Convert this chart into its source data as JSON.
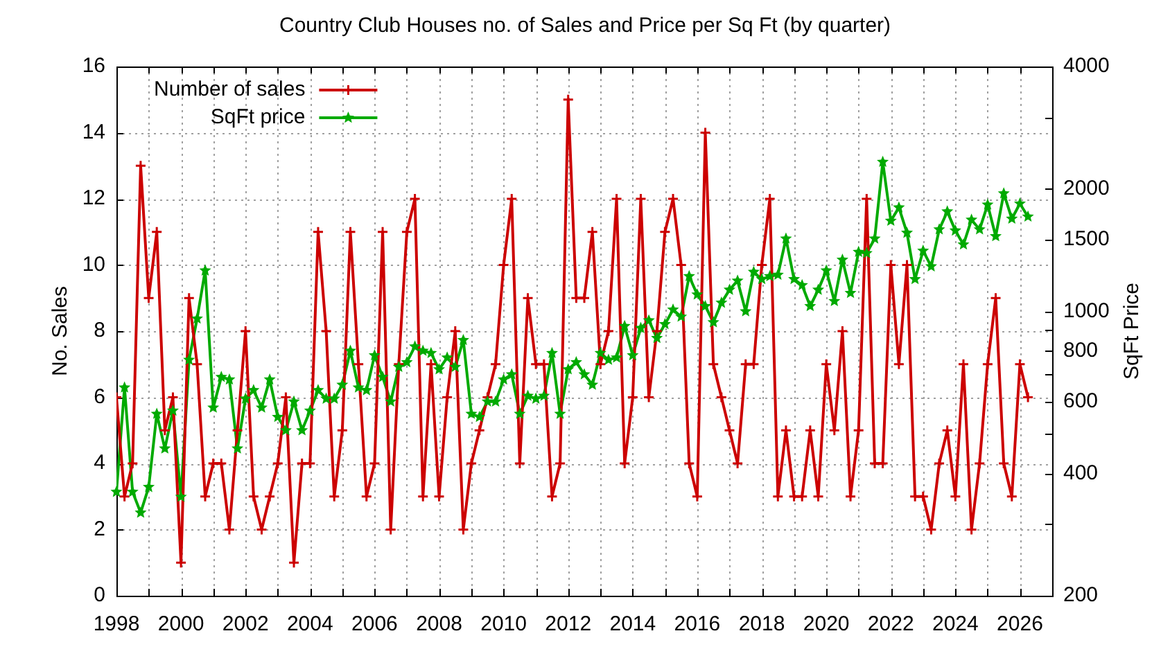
{
  "chart_data": {
    "type": "line",
    "title": "Country Club Houses no. of Sales and Price per Sq Ft (by quarter)",
    "ylabel": "No. Sales",
    "y2label": "SqFt Price",
    "x": [
      1998,
      1998.25,
      1998.5,
      1998.75,
      1999,
      1999.25,
      1999.5,
      1999.75,
      2000,
      2000.25,
      2000.5,
      2000.75,
      2001,
      2001.25,
      2001.5,
      2001.75,
      2002,
      2002.25,
      2002.5,
      2002.75,
      2003,
      2003.25,
      2003.5,
      2003.75,
      2004,
      2004.25,
      2004.5,
      2004.75,
      2005,
      2005.25,
      2005.5,
      2005.75,
      2006,
      2006.25,
      2006.5,
      2006.75,
      2007,
      2007.25,
      2007.5,
      2007.75,
      2008,
      2008.25,
      2008.5,
      2008.75,
      2009,
      2009.25,
      2009.5,
      2009.75,
      2010,
      2010.25,
      2010.5,
      2010.75,
      2011,
      2011.25,
      2011.5,
      2011.75,
      2012,
      2012.25,
      2012.5,
      2012.75,
      2013,
      2013.25,
      2013.5,
      2013.75,
      2014,
      2014.25,
      2014.5,
      2014.75,
      2015,
      2015.25,
      2015.5,
      2015.75,
      2016,
      2016.25,
      2016.5,
      2016.75,
      2017,
      2017.25,
      2017.5,
      2017.75,
      2018,
      2018.25,
      2018.5,
      2018.75,
      2019,
      2019.25,
      2019.5,
      2019.75,
      2020,
      2020.25,
      2020.5,
      2020.75,
      2021,
      2021.25,
      2021.5,
      2021.75,
      2022,
      2022.25,
      2022.5,
      2022.75,
      2023,
      2023.25,
      2023.5,
      2023.75,
      2024,
      2024.25,
      2024.5,
      2024.75,
      2025,
      2025.25,
      2025.5,
      2025.75,
      2026,
      2026.25
    ],
    "xlim": [
      1998,
      2027
    ],
    "xticks": [
      1998,
      {
        "value": 1999,
        "label": null
      },
      2000,
      {
        "value": 2001,
        "label": null
      },
      2002,
      {
        "value": 2003,
        "label": null
      },
      2004,
      {
        "value": 2005,
        "label": null
      },
      2006,
      {
        "value": 2007,
        "label": null
      },
      2008,
      {
        "value": 2009,
        "label": null
      },
      2010,
      {
        "value": 2011,
        "label": null
      },
      2012,
      {
        "value": 2013,
        "label": null
      },
      2014,
      {
        "value": 2015,
        "label": null
      },
      2016,
      {
        "value": 2017,
        "label": null
      },
      2018,
      {
        "value": 2019,
        "label": null
      },
      2020,
      {
        "value": 2021,
        "label": null
      },
      2022,
      {
        "value": 2023,
        "label": null
      },
      2024,
      {
        "value": 2025,
        "label": null
      },
      2026
    ],
    "ylim": [
      0,
      16
    ],
    "yticks": [
      0,
      2,
      4,
      6,
      8,
      10,
      12,
      14,
      16
    ],
    "y2lim": [
      200,
      4000
    ],
    "y2ticks": [
      200,
      {
        "value": 300,
        "label": null
      },
      400,
      {
        "value": 500,
        "label": null
      },
      600,
      {
        "value": 700,
        "label": null
      },
      800,
      {
        "value": 900,
        "label": null
      },
      1000,
      1500,
      2000,
      {
        "value": 3000,
        "label": null
      },
      4000
    ],
    "log": "y2",
    "grid": true,
    "legend": "top left",
    "series": [
      {
        "name": "Number of sales",
        "color": "#cc0000",
        "marker": "cross",
        "values": [
          6,
          3,
          4,
          13,
          9,
          11,
          5,
          6,
          1,
          9,
          7,
          3,
          4,
          4,
          2,
          5,
          8,
          3,
          2,
          3,
          4,
          6,
          1,
          4,
          4,
          11,
          8,
          3,
          5,
          11,
          7,
          3,
          4,
          11,
          2,
          7,
          11,
          12,
          3,
          7,
          3,
          6,
          8,
          2,
          4,
          5,
          6,
          7,
          10,
          12,
          4,
          9,
          7,
          7,
          3,
          4,
          15,
          9,
          9,
          11,
          7,
          8,
          12,
          4,
          6,
          12,
          6,
          8,
          11,
          12,
          10,
          4,
          3,
          14,
          7,
          6,
          5,
          4,
          7,
          7,
          10,
          12,
          3,
          5,
          3,
          3,
          5,
          3,
          7,
          5,
          8,
          3,
          5,
          12,
          4,
          4,
          10,
          7,
          10,
          3,
          3,
          2,
          4,
          5,
          3,
          7,
          2,
          4,
          7,
          9,
          4,
          3,
          7,
          6
        ]
      },
      {
        "name": "SqFt price",
        "color": "#00aa00",
        "marker": "star",
        "axis": "y2",
        "values": [
          360,
          650,
          360,
          320,
          370,
          560,
          460,
          570,
          350,
          760,
          960,
          1260,
          580,
          690,
          680,
          460,
          610,
          640,
          580,
          680,
          550,
          510,
          600,
          510,
          570,
          640,
          610,
          610,
          660,
          800,
          650,
          640,
          780,
          690,
          600,
          730,
          750,
          820,
          800,
          790,
          720,
          770,
          730,
          850,
          560,
          550,
          600,
          600,
          680,
          700,
          560,
          620,
          610,
          620,
          790,
          560,
          720,
          750,
          700,
          660,
          790,
          760,
          770,
          920,
          780,
          910,
          950,
          860,
          930,
          1010,
          970,
          1220,
          1100,
          1030,
          940,
          1050,
          1130,
          1190,
          1000,
          1250,
          1200,
          1220,
          1230,
          1510,
          1200,
          1160,
          1030,
          1130,
          1260,
          1060,
          1340,
          1110,
          1400,
          1390,
          1510,
          2330,
          1670,
          1800,
          1560,
          1200,
          1410,
          1290,
          1590,
          1760,
          1580,
          1460,
          1680,
          1590,
          1830,
          1530,
          1950,
          1690,
          1840,
          1710
        ]
      }
    ]
  }
}
